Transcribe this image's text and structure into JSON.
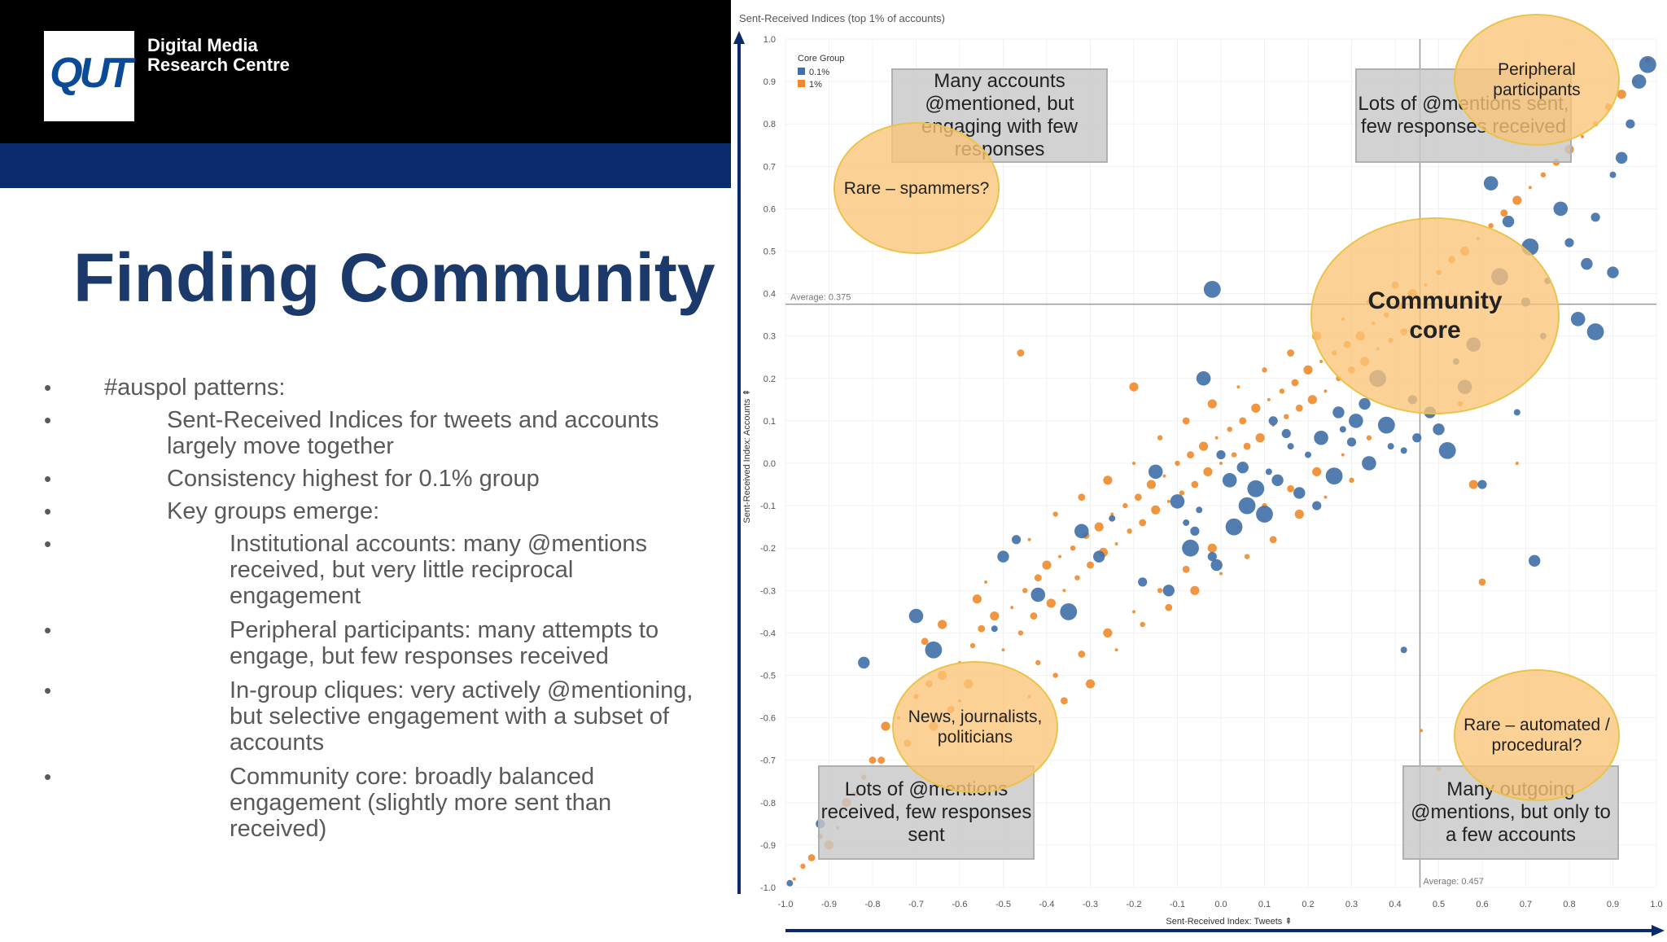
{
  "header": {
    "logo_text": "QUT",
    "org_line1": "Digital Media",
    "org_line2": "Research Centre"
  },
  "slide": {
    "title": "Finding Community",
    "bullets": [
      {
        "level": 1,
        "text": "#auspol patterns:"
      },
      {
        "level": 2,
        "text": "Sent-Received Indices for tweets and accounts largely move together"
      },
      {
        "level": 2,
        "text": "Consistency highest for 0.1% group"
      },
      {
        "level": 2,
        "text": "Key groups emerge:"
      },
      {
        "level": 3,
        "text": "Institutional accounts: many @mentions received, but very little reciprocal engagement"
      },
      {
        "level": 3,
        "text": "Peripheral participants: many attempts to engage, but few responses received"
      },
      {
        "level": 3,
        "text": "In-group cliques: very actively @mentioning, but selective engagement with a subset of accounts"
      },
      {
        "level": 3,
        "text": "Community core: broadly balanced engagement (slightly more sent than received)"
      }
    ]
  },
  "chart_data": {
    "type": "scatter",
    "title": "Sent-Received Indices (top 1% of accounts)",
    "xlabel": "Sent-Received Index: Tweets ⇞",
    "ylabel": "Sent-Received Index: Accounts ⇞",
    "xlim": [
      -1.0,
      1.0
    ],
    "ylim": [
      -1.0,
      1.0
    ],
    "x_ticks": [
      "-1.0",
      "-0.9",
      "-0.8",
      "-0.7",
      "-0.6",
      "-0.5",
      "-0.4",
      "-0.3",
      "-0.2",
      "-0.1",
      "0.0",
      "0.1",
      "0.2",
      "0.3",
      "0.4",
      "0.5",
      "0.6",
      "0.7",
      "0.8",
      "0.9",
      "1.0"
    ],
    "y_ticks": [
      "1.0",
      "0.9",
      "0.8",
      "0.7",
      "0.6",
      "0.5",
      "0.4",
      "0.3",
      "0.2",
      "0.1",
      "0.0",
      "-0.1",
      "-0.2",
      "-0.3",
      "-0.4",
      "-0.5",
      "-0.6",
      "-0.7",
      "-0.8",
      "-0.9",
      "-1.0"
    ],
    "legend": {
      "title": "Core Group",
      "placement": "top-left"
    },
    "reference_lines": [
      {
        "axis": "y",
        "value": 0.375,
        "label": "Average: 0.375"
      },
      {
        "axis": "x",
        "value": 0.457,
        "label": "Average: 0.457"
      }
    ],
    "series": [
      {
        "name": "0.1%",
        "color": "#3f6fa8",
        "points": [
          [
            -0.99,
            -0.99
          ],
          [
            -0.92,
            -0.85
          ],
          [
            -0.82,
            -0.47
          ],
          [
            -0.7,
            -0.36
          ],
          [
            -0.66,
            -0.44
          ],
          [
            -0.52,
            -0.39
          ],
          [
            -0.47,
            -0.18
          ],
          [
            -0.5,
            -0.22
          ],
          [
            -0.42,
            -0.31
          ],
          [
            -0.35,
            -0.35
          ],
          [
            -0.25,
            -0.13
          ],
          [
            -0.18,
            -0.28
          ],
          [
            -0.12,
            -0.3
          ],
          [
            -0.1,
            -0.09
          ],
          [
            -0.07,
            -0.2
          ],
          [
            -0.05,
            -0.11
          ],
          [
            -0.02,
            -0.22
          ],
          [
            -0.01,
            -0.24
          ],
          [
            0.02,
            -0.04
          ],
          [
            0.06,
            -0.1
          ],
          [
            0.11,
            -0.02
          ],
          [
            0.15,
            0.07
          ],
          [
            0.18,
            -0.07
          ],
          [
            0.23,
            0.06
          ],
          [
            0.26,
            -0.03
          ],
          [
            0.28,
            0.08
          ],
          [
            0.3,
            0.05
          ],
          [
            0.33,
            0.14
          ],
          [
            0.34,
            0.0
          ],
          [
            0.38,
            0.09
          ],
          [
            0.42,
            0.03
          ],
          [
            0.45,
            0.06
          ],
          [
            0.48,
            0.12
          ],
          [
            -0.04,
            0.2
          ],
          [
            -0.02,
            0.41
          ],
          [
            0.42,
            -0.44
          ],
          [
            0.6,
            -0.05
          ],
          [
            0.72,
            -0.23
          ],
          [
            0.62,
            0.66
          ],
          [
            0.71,
            0.51
          ],
          [
            0.75,
            0.43
          ],
          [
            0.8,
            0.52
          ],
          [
            0.84,
            0.47
          ],
          [
            0.82,
            0.34
          ],
          [
            0.86,
            0.31
          ],
          [
            0.9,
            0.68
          ],
          [
            0.94,
            0.8
          ],
          [
            0.66,
            0.57
          ],
          [
            0.56,
            0.18
          ],
          [
            0.52,
            0.03
          ],
          [
            0.68,
            0.12
          ],
          [
            0.7,
            0.38
          ],
          [
            0.9,
            0.45
          ],
          [
            0.78,
            0.6
          ],
          [
            0.36,
            0.2
          ],
          [
            0.2,
            0.02
          ],
          [
            0.12,
            0.1
          ],
          [
            0.05,
            -0.01
          ],
          [
            -0.15,
            -0.02
          ],
          [
            0.08,
            -0.06
          ],
          [
            0.16,
            0.04
          ],
          [
            0.22,
            -0.1
          ],
          [
            0.27,
            0.12
          ],
          [
            0.31,
            0.1
          ],
          [
            0.03,
            -0.15
          ],
          [
            -0.08,
            -0.14
          ],
          [
            0.0,
            0.02
          ],
          [
            -0.28,
            -0.22
          ],
          [
            -0.32,
            -0.16
          ],
          [
            0.1,
            -0.12
          ],
          [
            0.39,
            0.04
          ],
          [
            0.44,
            0.15
          ],
          [
            0.5,
            0.08
          ],
          [
            0.58,
            0.28
          ],
          [
            0.64,
            0.44
          ],
          [
            0.74,
            0.3
          ],
          [
            0.86,
            0.58
          ],
          [
            0.92,
            0.72
          ],
          [
            0.96,
            0.9
          ],
          [
            0.98,
            0.94
          ],
          [
            0.54,
            0.24
          ],
          [
            -0.06,
            -0.16
          ],
          [
            0.13,
            -0.04
          ]
        ]
      },
      {
        "name": "1%",
        "color": "#ee8a2b",
        "points": [
          [
            -0.98,
            -0.98
          ],
          [
            -0.96,
            -0.95
          ],
          [
            -0.94,
            -0.93
          ],
          [
            -0.9,
            -0.9
          ],
          [
            -0.87,
            -0.82
          ],
          [
            -0.84,
            -0.78
          ],
          [
            -0.8,
            -0.7
          ],
          [
            -0.77,
            -0.62
          ],
          [
            -0.74,
            -0.6
          ],
          [
            -0.7,
            -0.55
          ],
          [
            -0.67,
            -0.52
          ],
          [
            -0.64,
            -0.5
          ],
          [
            -0.6,
            -0.47
          ],
          [
            -0.57,
            -0.43
          ],
          [
            -0.55,
            -0.39
          ],
          [
            -0.52,
            -0.36
          ],
          [
            -0.48,
            -0.34
          ],
          [
            -0.45,
            -0.3
          ],
          [
            -0.42,
            -0.27
          ],
          [
            -0.4,
            -0.24
          ],
          [
            -0.37,
            -0.22
          ],
          [
            -0.34,
            -0.2
          ],
          [
            -0.31,
            -0.17
          ],
          [
            -0.28,
            -0.15
          ],
          [
            -0.25,
            -0.12
          ],
          [
            -0.22,
            -0.1
          ],
          [
            -0.19,
            -0.08
          ],
          [
            -0.16,
            -0.05
          ],
          [
            -0.13,
            -0.03
          ],
          [
            -0.1,
            0.0
          ],
          [
            -0.07,
            0.02
          ],
          [
            -0.04,
            0.04
          ],
          [
            -0.01,
            0.06
          ],
          [
            0.02,
            0.08
          ],
          [
            0.05,
            0.1
          ],
          [
            0.08,
            0.13
          ],
          [
            0.11,
            0.15
          ],
          [
            0.14,
            0.17
          ],
          [
            0.17,
            0.19
          ],
          [
            0.2,
            0.22
          ],
          [
            0.23,
            0.24
          ],
          [
            0.26,
            0.26
          ],
          [
            0.29,
            0.28
          ],
          [
            0.32,
            0.3
          ],
          [
            0.35,
            0.33
          ],
          [
            0.38,
            0.35
          ],
          [
            0.41,
            0.37
          ],
          [
            0.44,
            0.4
          ],
          [
            0.47,
            0.42
          ],
          [
            0.5,
            0.45
          ],
          [
            0.53,
            0.48
          ],
          [
            0.56,
            0.5
          ],
          [
            0.59,
            0.53
          ],
          [
            0.62,
            0.56
          ],
          [
            0.65,
            0.59
          ],
          [
            0.68,
            0.62
          ],
          [
            0.71,
            0.65
          ],
          [
            0.74,
            0.68
          ],
          [
            0.77,
            0.71
          ],
          [
            0.8,
            0.74
          ],
          [
            0.83,
            0.77
          ],
          [
            0.86,
            0.8
          ],
          [
            0.89,
            0.84
          ],
          [
            0.92,
            0.87
          ],
          [
            0.95,
            0.9
          ],
          [
            0.98,
            0.95
          ],
          [
            -0.62,
            -0.58
          ],
          [
            -0.58,
            -0.52
          ],
          [
            -0.5,
            -0.44
          ],
          [
            -0.46,
            -0.4
          ],
          [
            -0.43,
            -0.36
          ],
          [
            -0.39,
            -0.33
          ],
          [
            -0.36,
            -0.3
          ],
          [
            -0.33,
            -0.27
          ],
          [
            -0.3,
            -0.24
          ],
          [
            -0.27,
            -0.21
          ],
          [
            -0.24,
            -0.19
          ],
          [
            -0.21,
            -0.16
          ],
          [
            -0.18,
            -0.14
          ],
          [
            -0.15,
            -0.11
          ],
          [
            -0.12,
            -0.09
          ],
          [
            -0.09,
            -0.07
          ],
          [
            -0.06,
            -0.05
          ],
          [
            -0.03,
            -0.02
          ],
          [
            0.0,
            0.0
          ],
          [
            0.03,
            0.02
          ],
          [
            0.06,
            0.04
          ],
          [
            0.09,
            0.06
          ],
          [
            0.12,
            0.09
          ],
          [
            0.15,
            0.11
          ],
          [
            0.18,
            0.13
          ],
          [
            0.21,
            0.15
          ],
          [
            0.24,
            0.17
          ],
          [
            0.27,
            0.2
          ],
          [
            0.3,
            0.22
          ],
          [
            0.33,
            0.24
          ],
          [
            0.36,
            0.27
          ],
          [
            0.39,
            0.29
          ],
          [
            0.42,
            0.31
          ],
          [
            -0.56,
            -0.32
          ],
          [
            -0.44,
            -0.18
          ],
          [
            -0.38,
            -0.12
          ],
          [
            -0.32,
            -0.08
          ],
          [
            -0.26,
            -0.04
          ],
          [
            -0.2,
            0.0
          ],
          [
            -0.14,
            0.06
          ],
          [
            -0.08,
            0.1
          ],
          [
            -0.02,
            0.14
          ],
          [
            0.04,
            0.18
          ],
          [
            0.1,
            0.22
          ],
          [
            0.16,
            0.26
          ],
          [
            0.22,
            0.3
          ],
          [
            0.28,
            0.34
          ],
          [
            0.34,
            0.38
          ],
          [
            0.4,
            0.42
          ],
          [
            -0.5,
            -0.6
          ],
          [
            -0.44,
            -0.55
          ],
          [
            -0.38,
            -0.5
          ],
          [
            -0.32,
            -0.45
          ],
          [
            -0.26,
            -0.4
          ],
          [
            -0.2,
            -0.35
          ],
          [
            -0.14,
            -0.3
          ],
          [
            -0.08,
            -0.25
          ],
          [
            -0.02,
            -0.2
          ],
          [
            0.04,
            -0.15
          ],
          [
            0.1,
            -0.1
          ],
          [
            0.16,
            -0.06
          ],
          [
            0.22,
            -0.02
          ],
          [
            0.28,
            0.02
          ],
          [
            0.34,
            0.06
          ],
          [
            -0.46,
            0.26
          ],
          [
            -0.2,
            0.18
          ],
          [
            0.46,
            -0.63
          ],
          [
            0.5,
            -0.72
          ],
          [
            0.6,
            -0.28
          ],
          [
            0.58,
            -0.05
          ],
          [
            0.68,
            0.0
          ],
          [
            0.55,
            0.14
          ],
          [
            -0.68,
            -0.42
          ],
          [
            -0.64,
            -0.38
          ],
          [
            -0.54,
            -0.28
          ],
          [
            -0.42,
            -0.47
          ],
          [
            -0.36,
            -0.56
          ],
          [
            -0.3,
            -0.52
          ],
          [
            -0.24,
            -0.44
          ],
          [
            -0.18,
            -0.38
          ],
          [
            -0.12,
            -0.34
          ],
          [
            -0.06,
            -0.3
          ],
          [
            0.0,
            -0.26
          ],
          [
            0.06,
            -0.22
          ],
          [
            0.12,
            -0.18
          ],
          [
            0.18,
            -0.12
          ],
          [
            0.24,
            -0.08
          ],
          [
            0.3,
            -0.04
          ],
          [
            -0.72,
            -0.66
          ],
          [
            -0.66,
            -0.62
          ],
          [
            -0.6,
            -0.56
          ],
          [
            -0.82,
            -0.74
          ],
          [
            -0.78,
            -0.7
          ],
          [
            -0.86,
            -0.8
          ],
          [
            -0.88,
            -0.86
          ],
          [
            -0.92,
            -0.88
          ]
        ]
      }
    ]
  },
  "callouts": {
    "box_top_left": "Many accounts @mentioned, but engaging with few responses",
    "box_top_right": "Lots of @mentions sent, few responses received",
    "box_bottom_left": "Lots of @mentions received, few responses sent",
    "box_bottom_right": "Many outgoing @mentions, but only to a few accounts",
    "oval_spammers": "Rare – spammers?",
    "oval_peripheral": "Peripheral participants",
    "oval_core_line1": "Community",
    "oval_core_line2": "core",
    "oval_news": "News, journalists, politicians",
    "oval_automated": "Rare – automated / procedural?"
  }
}
